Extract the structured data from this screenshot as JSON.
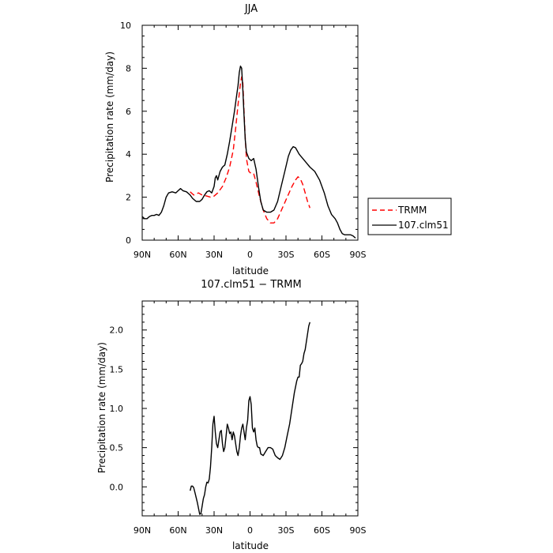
{
  "chart_data": [
    {
      "type": "line",
      "title": "JJA",
      "xlabel": "latitude",
      "ylabel": "Precipitation rate (mm/day)",
      "xlim": [
        90,
        -90
      ],
      "ylim": [
        0,
        10
      ],
      "x_ticks": [
        {
          "value": 90,
          "label": "90N"
        },
        {
          "value": 60,
          "label": "60N"
        },
        {
          "value": 30,
          "label": "30N"
        },
        {
          "value": 0,
          "label": "0"
        },
        {
          "value": -30,
          "label": "30S"
        },
        {
          "value": -60,
          "label": "60S"
        },
        {
          "value": -90,
          "label": "90S"
        }
      ],
      "y_ticks": [
        0,
        2,
        4,
        6,
        8,
        10
      ],
      "legend_position": "outside-right",
      "series": [
        {
          "name": "TRMM",
          "color": "#ff0000",
          "style": "dashed",
          "points": [
            [
              50,
              2.25
            ],
            [
              47,
              2.1
            ],
            [
              43,
              2.2
            ],
            [
              40,
              2.1
            ],
            [
              36,
              2.05
            ],
            [
              33,
              2.0
            ],
            [
              30,
              2.05
            ],
            [
              27,
              2.2
            ],
            [
              23,
              2.5
            ],
            [
              20,
              2.9
            ],
            [
              17,
              3.4
            ],
            [
              14,
              4.2
            ],
            [
              12,
              5.2
            ],
            [
              10,
              6.3
            ],
            [
              8,
              7.3
            ],
            [
              7,
              7.6
            ],
            [
              6,
              7.3
            ],
            [
              5,
              6.0
            ],
            [
              4,
              4.8
            ],
            [
              3,
              3.8
            ],
            [
              1,
              3.2
            ],
            [
              -1,
              3.1
            ],
            [
              -3,
              3.1
            ],
            [
              -5,
              2.7
            ],
            [
              -8,
              2.0
            ],
            [
              -11,
              1.4
            ],
            [
              -14,
              1.0
            ],
            [
              -17,
              0.8
            ],
            [
              -20,
              0.8
            ],
            [
              -23,
              1.0
            ],
            [
              -27,
              1.5
            ],
            [
              -31,
              2.0
            ],
            [
              -35,
              2.5
            ],
            [
              -38,
              2.8
            ],
            [
              -40,
              2.95
            ],
            [
              -42,
              2.85
            ],
            [
              -44,
              2.6
            ],
            [
              -46,
              2.2
            ],
            [
              -48,
              1.8
            ],
            [
              -50,
              1.5
            ]
          ]
        },
        {
          "name": "107.clm51",
          "color": "#000000",
          "style": "solid",
          "points": [
            [
              90,
              1.1
            ],
            [
              88,
              1.0
            ],
            [
              86,
              1.0
            ],
            [
              84,
              1.1
            ],
            [
              82,
              1.15
            ],
            [
              80,
              1.15
            ],
            [
              78,
              1.2
            ],
            [
              76,
              1.15
            ],
            [
              74,
              1.3
            ],
            [
              72,
              1.6
            ],
            [
              70,
              2.0
            ],
            [
              68,
              2.2
            ],
            [
              65,
              2.25
            ],
            [
              62,
              2.2
            ],
            [
              60,
              2.3
            ],
            [
              58,
              2.4
            ],
            [
              56,
              2.3
            ],
            [
              53,
              2.25
            ],
            [
              50,
              2.1
            ],
            [
              48,
              1.95
            ],
            [
              45,
              1.8
            ],
            [
              42,
              1.8
            ],
            [
              40,
              1.9
            ],
            [
              38,
              2.1
            ],
            [
              36,
              2.25
            ],
            [
              34,
              2.3
            ],
            [
              32,
              2.2
            ],
            [
              30,
              2.5
            ],
            [
              29,
              2.9
            ],
            [
              28,
              3.0
            ],
            [
              27,
              2.8
            ],
            [
              25,
              3.2
            ],
            [
              23,
              3.4
            ],
            [
              21,
              3.5
            ],
            [
              19,
              4.0
            ],
            [
              17,
              4.6
            ],
            [
              15,
              5.3
            ],
            [
              13,
              6.0
            ],
            [
              11,
              6.8
            ],
            [
              10,
              7.2
            ],
            [
              9,
              7.8
            ],
            [
              8,
              8.1
            ],
            [
              7,
              8.0
            ],
            [
              6,
              7.0
            ],
            [
              5,
              5.8
            ],
            [
              4,
              4.7
            ],
            [
              3,
              4.1
            ],
            [
              1,
              3.8
            ],
            [
              -1,
              3.7
            ],
            [
              -3,
              3.8
            ],
            [
              -5,
              3.3
            ],
            [
              -7,
              2.5
            ],
            [
              -9,
              1.8
            ],
            [
              -11,
              1.4
            ],
            [
              -14,
              1.3
            ],
            [
              -17,
              1.3
            ],
            [
              -20,
              1.4
            ],
            [
              -23,
              1.8
            ],
            [
              -26,
              2.5
            ],
            [
              -29,
              3.2
            ],
            [
              -32,
              3.9
            ],
            [
              -34,
              4.2
            ],
            [
              -36,
              4.35
            ],
            [
              -38,
              4.3
            ],
            [
              -41,
              4.0
            ],
            [
              -44,
              3.8
            ],
            [
              -47,
              3.6
            ],
            [
              -50,
              3.4
            ],
            [
              -54,
              3.2
            ],
            [
              -58,
              2.8
            ],
            [
              -62,
              2.2
            ],
            [
              -65,
              1.6
            ],
            [
              -68,
              1.2
            ],
            [
              -71,
              1.0
            ],
            [
              -73,
              0.8
            ],
            [
              -75,
              0.5
            ],
            [
              -77,
              0.3
            ],
            [
              -79,
              0.25
            ],
            [
              -82,
              0.25
            ],
            [
              -84,
              0.25
            ],
            [
              -86,
              0.2
            ],
            [
              -88,
              0.1
            ]
          ]
        }
      ]
    },
    {
      "type": "line",
      "title": "107.clm51 − TRMM",
      "xlabel": "latitude",
      "ylabel": "Precipitation rate (mm/day)",
      "xlim": [
        90,
        -90
      ],
      "ylim": [
        -0.37,
        2.37
      ],
      "x_ticks": [
        {
          "value": 90,
          "label": "90N"
        },
        {
          "value": 60,
          "label": "60N"
        },
        {
          "value": 30,
          "label": "30N"
        },
        {
          "value": 0,
          "label": "0"
        },
        {
          "value": -30,
          "label": "30S"
        },
        {
          "value": -60,
          "label": "60S"
        },
        {
          "value": -90,
          "label": "90S"
        }
      ],
      "y_ticks": [
        {
          "value": 0,
          "label": "0.0"
        },
        {
          "value": 0.5,
          "label": "0.5"
        },
        {
          "value": 1.0,
          "label": "1.0"
        },
        {
          "value": 1.5,
          "label": "1.5"
        },
        {
          "value": 2.0,
          "label": "2.0"
        }
      ],
      "series": [
        {
          "color": "#000000",
          "style": "solid",
          "points": [
            [
              50,
              -0.05
            ],
            [
              49,
              0.01
            ],
            [
              48,
              0.01
            ],
            [
              47,
              -0.01
            ],
            [
              46,
              -0.07
            ],
            [
              44,
              -0.2
            ],
            [
              42,
              -0.35
            ],
            [
              41,
              -0.34
            ],
            [
              40,
              -0.25
            ],
            [
              39,
              -0.15
            ],
            [
              38,
              -0.1
            ],
            [
              37,
              0.0
            ],
            [
              36,
              0.06
            ],
            [
              35,
              0.05
            ],
            [
              34,
              0.1
            ],
            [
              33,
              0.25
            ],
            [
              32,
              0.5
            ],
            [
              31,
              0.8
            ],
            [
              30,
              0.9
            ],
            [
              29,
              0.7
            ],
            [
              28,
              0.55
            ],
            [
              27,
              0.5
            ],
            [
              26,
              0.6
            ],
            [
              25,
              0.7
            ],
            [
              24,
              0.72
            ],
            [
              23,
              0.55
            ],
            [
              22,
              0.45
            ],
            [
              21,
              0.5
            ],
            [
              20,
              0.65
            ],
            [
              19,
              0.8
            ],
            [
              18,
              0.75
            ],
            [
              17,
              0.68
            ],
            [
              16,
              0.7
            ],
            [
              15,
              0.6
            ],
            [
              14,
              0.7
            ],
            [
              13,
              0.65
            ],
            [
              12,
              0.55
            ],
            [
              11,
              0.45
            ],
            [
              10,
              0.4
            ],
            [
              9,
              0.5
            ],
            [
              8,
              0.65
            ],
            [
              7,
              0.75
            ],
            [
              6,
              0.8
            ],
            [
              5,
              0.7
            ],
            [
              4,
              0.6
            ],
            [
              3,
              0.75
            ],
            [
              2,
              0.85
            ],
            [
              1,
              1.1
            ],
            [
              0,
              1.15
            ],
            [
              -1,
              1.05
            ],
            [
              -2,
              0.75
            ],
            [
              -3,
              0.7
            ],
            [
              -4,
              0.75
            ],
            [
              -5,
              0.6
            ],
            [
              -6,
              0.52
            ],
            [
              -7,
              0.5
            ],
            [
              -8,
              0.5
            ],
            [
              -9,
              0.42
            ],
            [
              -11,
              0.4
            ],
            [
              -13,
              0.45
            ],
            [
              -15,
              0.5
            ],
            [
              -17,
              0.5
            ],
            [
              -19,
              0.48
            ],
            [
              -21,
              0.4
            ],
            [
              -23,
              0.37
            ],
            [
              -25,
              0.35
            ],
            [
              -27,
              0.4
            ],
            [
              -29,
              0.5
            ],
            [
              -31,
              0.65
            ],
            [
              -33,
              0.8
            ],
            [
              -35,
              1.0
            ],
            [
              -37,
              1.2
            ],
            [
              -39,
              1.35
            ],
            [
              -40,
              1.4
            ],
            [
              -41,
              1.4
            ],
            [
              -42,
              1.55
            ],
            [
              -43,
              1.57
            ],
            [
              -44,
              1.6
            ],
            [
              -45,
              1.7
            ],
            [
              -46,
              1.75
            ],
            [
              -47,
              1.85
            ],
            [
              -48,
              1.95
            ],
            [
              -49,
              2.05
            ],
            [
              -50,
              2.1
            ]
          ]
        }
      ]
    }
  ]
}
